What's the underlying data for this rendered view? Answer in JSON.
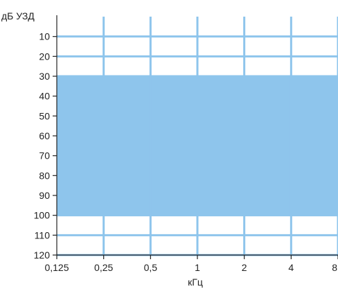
{
  "chart_data": {
    "type": "area",
    "title": "",
    "ylabel": "дБ УЗД",
    "xlabel": "кГц",
    "x_categories": [
      "0,125",
      "0,25",
      "0,5",
      "1",
      "2",
      "4",
      "8"
    ],
    "y_ticks": [
      10,
      20,
      30,
      40,
      50,
      60,
      70,
      80,
      90,
      100,
      110,
      120
    ],
    "ylim": [
      0,
      120
    ],
    "y_inverted": true,
    "grid": true,
    "band": {
      "x_start": "0,125",
      "x_end": "8",
      "y_from": 30,
      "y_to": 100
    },
    "colors": {
      "band": "#8ec5ec",
      "grid": "#8ec5ec",
      "axis": "#222222",
      "text": "#222222"
    }
  }
}
